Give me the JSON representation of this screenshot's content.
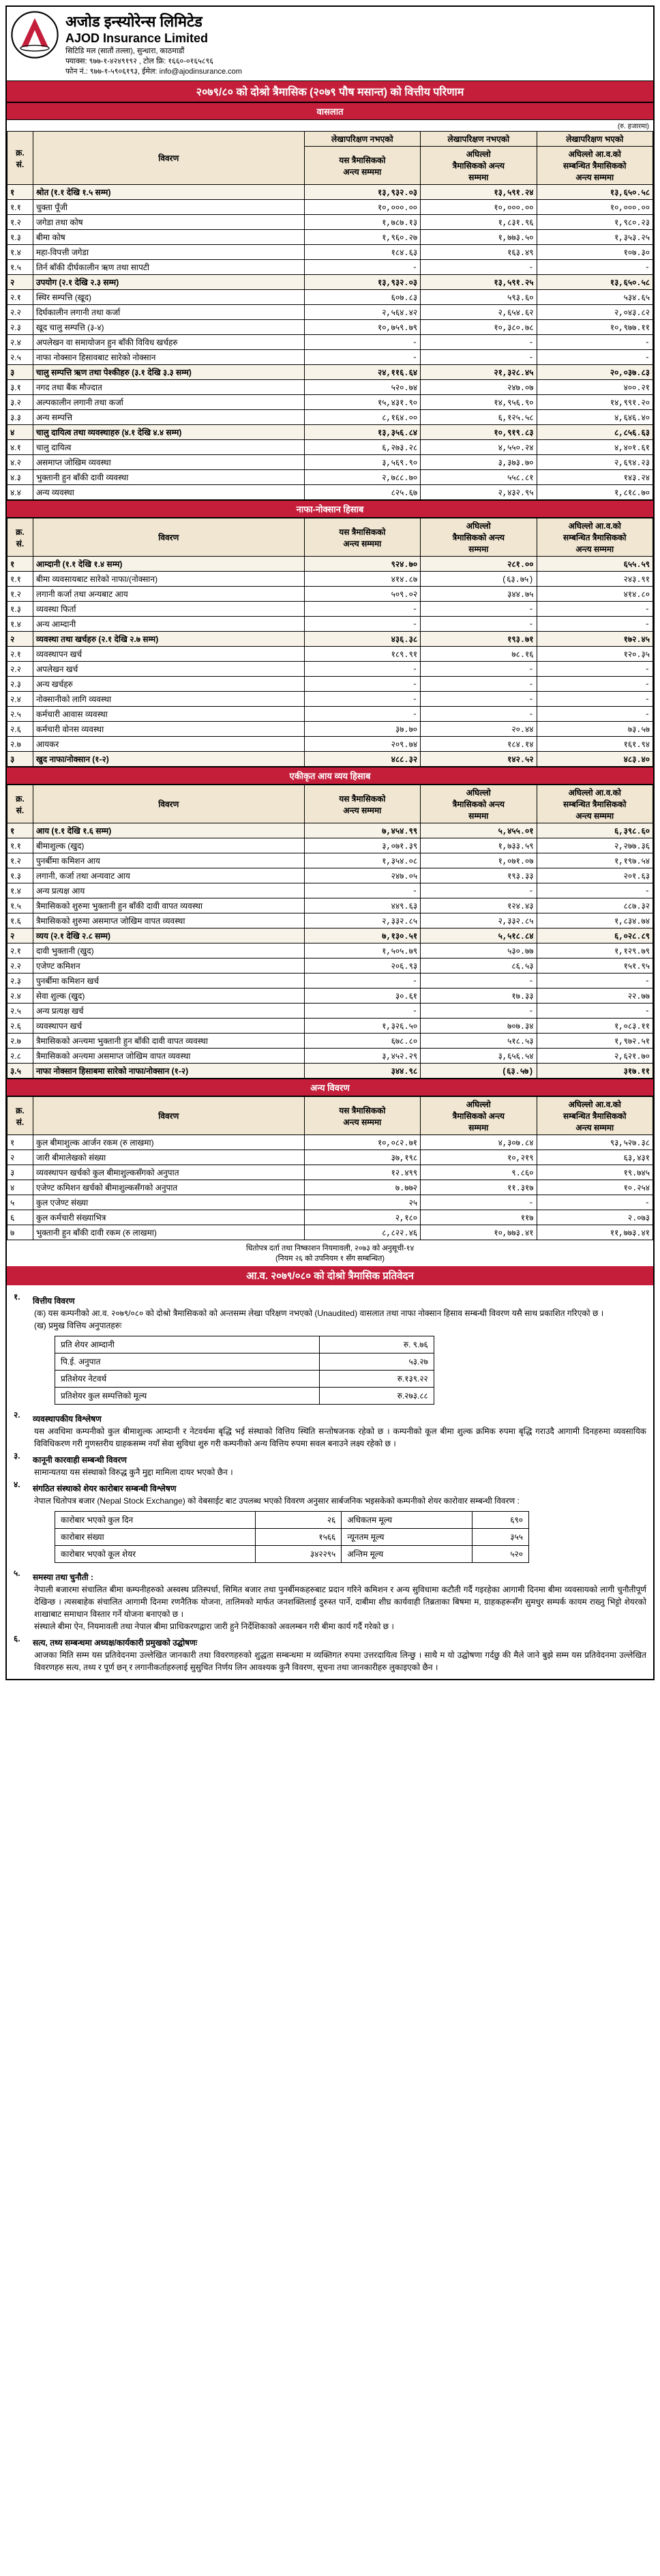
{
  "header": {
    "name_ne": "अजोड इन्स्योरेन्स लिमिटेड",
    "name_en": "AJOD Insurance Limited",
    "address": "सिटिडि मल (सातौं तल्ला), सुन्धारा, काठमाडौं",
    "contact": "फ्याक्स: ९७७-१-४२४९१९२ , टोल फ्रि: १६६०-०१६५८९६",
    "fax": "फोन नं.: ९७७-१-५९०६१९३, ईमेल: info@ajodinsurance.com"
  },
  "main_title": "२०७९/८० को दोश्रो त्रैमासिक (२०७९ पौष मसान्त) को वित्तीय परिणाम",
  "sections": {
    "s1": "वासलात",
    "s2": "नाफा-नोक्सान हिसाब",
    "s3": "एकीकृत आय व्यय हिसाब",
    "s4": "अन्य विवरण"
  },
  "unit_label": "(रु. हजारमा)",
  "cols": {
    "sn": "क्र.\nसं.",
    "desc": "विवरण",
    "c1": "यस त्रैमासिकको\nअन्त्य सम्ममा",
    "c2": "अघिल्लो\nत्रैमासिकको अन्त्य\nसम्ममा",
    "c3": "अघिल्लो आ.व.को\nसम्बन्धित त्रैमासिकको\nअन्त्य सम्ममा",
    "c1b": "लेखापरिक्षण नभएको",
    "c2b": "लेखापरिक्षण नभएको",
    "c3b": "लेखापरिक्षण भएको"
  },
  "t1": [
    {
      "b": 1,
      "sn": "१",
      "d": "श्रोत (१.१ देखि १.५ सम्म)",
      "v": [
        "१३,९३२.०३",
        "१३,५९१.२४",
        "१३,६५०.५८"
      ]
    },
    {
      "sn": "१.१",
      "d": "चुक्ता पूँजी",
      "v": [
        "१०,०००.००",
        "१०,०००.००",
        "१०,०००.००"
      ]
    },
    {
      "sn": "१.२",
      "d": "जगेडा तथा कोष",
      "v": [
        "१,७८७.१३",
        "१,८३१.९६",
        "१,९८०.२३"
      ]
    },
    {
      "sn": "१.३",
      "d": "बीमा कोष",
      "v": [
        "१,९६०.२७",
        "१,७७३.५०",
        "१,३५३.२५"
      ]
    },
    {
      "sn": "१.४",
      "d": "महा-विपत्ती जगेडा",
      "v": [
        "१८४.६३",
        "१६३.४९",
        "१०७.३०"
      ]
    },
    {
      "sn": "१.५",
      "d": "तिर्न बाँकी दीर्घकालीन ऋण तथा सापटी",
      "v": [
        "-",
        "-",
        "-"
      ]
    },
    {
      "b": 1,
      "sn": "२",
      "d": "उपयोग (२.१ देखि २.३ सम्म)",
      "v": [
        "१३,९३२.०३",
        "१३,५९१.२५",
        "१३,६५०.५८"
      ]
    },
    {
      "sn": "२.१",
      "d": "स्थिर सम्पत्ति (खूद)",
      "v": [
        "६०७.८३",
        "५९३.६०",
        "५३४.६५"
      ]
    },
    {
      "sn": "२.२",
      "d": "दिर्घकालीन लगानी तथा कर्जा",
      "v": [
        "२,५६४.४२",
        "२,६५४.६२",
        "२,०४३.८२"
      ]
    },
    {
      "sn": "२.३",
      "d": "खूद चालु सम्पत्ति (३-४)",
      "v": [
        "१०,७५९.७९",
        "१०,३८०.७८",
        "१०,९७७.११"
      ]
    },
    {
      "sn": "२.४",
      "d": "अपलेखन वा समायोजन हुन बाँकी विविध खर्चहरु",
      "v": [
        "-",
        "-",
        "-"
      ]
    },
    {
      "sn": "२.५",
      "d": "नाफा नोक्सान हिसावबाट सारेको नोक्सान",
      "v": [
        "-",
        "-",
        "-"
      ]
    },
    {
      "b": 1,
      "sn": "३",
      "d": "चालु सम्पत्ति ऋण तथा पेश्कीहरु (३.१ देखि ३.३ सम्म)",
      "v": [
        "२४,११६.६४",
        "२१,३२८.४५",
        "२०,०३७.८३"
      ]
    },
    {
      "sn": "३.१",
      "d": "नगद तथा बैंक मौज्दात",
      "v": [
        "५२०.७४",
        "२४७.०७",
        "४००.२१"
      ]
    },
    {
      "sn": "३.२",
      "d": "अल्पकालीन लगानी तथा कर्जा",
      "v": [
        "१५,४३१.९०",
        "१४,९५६.९०",
        "१४,९९१.२०"
      ]
    },
    {
      "sn": "३.३",
      "d": "अन्य सम्पत्ति",
      "v": [
        "८,१६४.००",
        "६,१२५.५८",
        "४,६४६.४०"
      ]
    },
    {
      "b": 1,
      "sn": "४",
      "d": "चालु दायित्व तथा व्यवस्थाहरु (४.१ देखि ४.४ सम्म)",
      "v": [
        "१३,३५६.८४",
        "१०,९१९.८३",
        "८,८५६.६३"
      ]
    },
    {
      "sn": "४.१",
      "d": "चालु दायित्व",
      "v": [
        "६,२७३.२८",
        "४,५५०.२४",
        "४,४०१.६१"
      ]
    },
    {
      "sn": "४.२",
      "d": "असमाप्त जोखिम व्यवस्था",
      "v": [
        "३,५६९.९०",
        "३,३७३.७०",
        "२,६९४.२३"
      ]
    },
    {
      "sn": "४.३",
      "d": "भुक्तानी हुन बाँकी दावी व्यवस्था",
      "v": [
        "२,७८८.७०",
        "५५८.८१",
        "१४३.२४"
      ]
    },
    {
      "sn": "४.४",
      "d": "अन्य व्यवस्था",
      "v": [
        "८२५.६७",
        "२,४३२.९५",
        "१,८१८.७०"
      ]
    }
  ],
  "t2": [
    {
      "b": 1,
      "sn": "१",
      "d": "आम्दानी (१.१ देखि १.४ सम्म)",
      "v": [
        "९२४.७०",
        "२८१.००",
        "६५५.५९"
      ]
    },
    {
      "sn": "१.१",
      "d": "बीमा व्यवसायबाट सारेको नाफा/(नोक्सान)",
      "v": [
        "४१४.८७",
        "(६३.७५)",
        "२४३.९१"
      ]
    },
    {
      "sn": "१.२",
      "d": "लगानी कर्जा तथा अन्यबाट आय",
      "v": [
        "५०९.०२",
        "३४४.७५",
        "४१४.८०"
      ]
    },
    {
      "sn": "१.३",
      "d": "व्यवस्था फिर्ता",
      "v": [
        "-",
        "-",
        "-"
      ]
    },
    {
      "sn": "१.४",
      "d": "अन्य आम्दानी",
      "v": [
        "-",
        "-",
        "-"
      ]
    },
    {
      "b": 1,
      "sn": "२",
      "d": "व्यवस्था तथा खर्चहरु (२.१ देखि २.७ सम्म)",
      "v": [
        "४३६.३८",
        "१९३.७१",
        "१७२.४५"
      ]
    },
    {
      "sn": "२.१",
      "d": "व्यवस्थापन खर्च",
      "v": [
        "१८९.९१",
        "७८.१६",
        "१२०.३५"
      ]
    },
    {
      "sn": "२.२",
      "d": "अपलेखन खर्च",
      "v": [
        "-",
        "-",
        "-"
      ]
    },
    {
      "sn": "२.३",
      "d": "अन्य खर्चहरु",
      "v": [
        "-",
        "-",
        "-"
      ]
    },
    {
      "sn": "२.४",
      "d": "नोक्सानीको लागि व्यवस्था",
      "v": [
        "-",
        "-",
        "-"
      ]
    },
    {
      "sn": "२.५",
      "d": "कर्मचारी आवास व्यवस्था",
      "v": [
        "-",
        "-",
        "-"
      ]
    },
    {
      "sn": "२.६",
      "d": "कर्मचारी वोनस व्यवस्था",
      "v": [
        "३७.७०",
        "२०.४४",
        "७३.५७"
      ]
    },
    {
      "sn": "२.७",
      "d": "आयकर",
      "v": [
        "२०९.७४",
        "१८४.१४",
        "१६१.९४"
      ]
    },
    {
      "b": 1,
      "sn": "३",
      "d": "खुद नाफा/नोक्सान (१-२)",
      "v": [
        "४८८.३२",
        "१४२.५२",
        "४८३.४०"
      ]
    }
  ],
  "t3": [
    {
      "b": 1,
      "sn": "१",
      "d": "आय (१.१ देखि १.६ सम्म)",
      "v": [
        "७,४५४.९९",
        "५,४५५.०१",
        "६,३९८.६०"
      ]
    },
    {
      "sn": "१.१",
      "d": "बीमाशुल्क (खुद)",
      "v": [
        "३,०७१.३९",
        "१,७३३.५९",
        "२,२७७.३६"
      ]
    },
    {
      "sn": "१.२",
      "d": "पुनर्बीमा कमिशन आय",
      "v": [
        "१,३५४.०८",
        "१,०७१.०७",
        "१,१९७.५४"
      ]
    },
    {
      "sn": "१.३",
      "d": "लगानी, कर्जा तथा अन्यवाट आय",
      "v": [
        "२४७.०५",
        "१९३.३३",
        "२०१.६३"
      ]
    },
    {
      "sn": "१.४",
      "d": "अन्य प्रत्यक्ष आय",
      "v": [
        "-",
        "-",
        "-"
      ]
    },
    {
      "sn": "१.५",
      "d": "त्रैमासिकको शुरुमा भुक्तानी हुन बाँकी दावी वापत व्यवस्था",
      "v": [
        "४४९.६३",
        "१२४.४३",
        "८८७.३२"
      ]
    },
    {
      "sn": "१.६",
      "d": "त्रैमासिकको शुरुमा असमाप्त जोखिम वापत व्यवस्था",
      "v": [
        "२,३३२.८५",
        "२,३३२.८५",
        "१,८३४.७४"
      ]
    },
    {
      "b": 1,
      "sn": "२",
      "d": "व्यय (२.१ देखि २.८ सम्म)",
      "v": [
        "७,१३०.५१",
        "५,५१८.८४",
        "६,०२८.८९"
      ]
    },
    {
      "sn": "२.१",
      "d": "दावी भुक्तानी (खुद)",
      "v": [
        "१,५०५.७९",
        "५३०.७७",
        "१,१२९.७९"
      ]
    },
    {
      "sn": "२.२",
      "d": "एजेण्ट कमिशन",
      "v": [
        "२०६.९३",
        "८६.५३",
        "१५१.९५"
      ]
    },
    {
      "sn": "२.३",
      "d": "पुनर्बीमा कमिशन खर्च",
      "v": [
        "-",
        "-",
        "-"
      ]
    },
    {
      "sn": "२.४",
      "d": "सेवा शुल्क (खुद)",
      "v": [
        "३०.६१",
        "१७.३३",
        "२२.७७"
      ]
    },
    {
      "sn": "२.५",
      "d": "अन्य प्रत्यक्ष खर्च",
      "v": [
        "-",
        "-",
        "-"
      ]
    },
    {
      "sn": "२.६",
      "d": "व्यवस्थापन खर्च",
      "v": [
        "१,३२६.५०",
        "७०७.३४",
        "१,०८३.११"
      ]
    },
    {
      "sn": "२.७",
      "d": "त्रैमासिकको अन्त्यमा भुक्तानी हुन बाँकी दावी वापत व्यवस्था",
      "v": [
        "६७८.८०",
        "५१८.५३",
        "१,९७२.५१"
      ]
    },
    {
      "sn": "२.८",
      "d": "त्रैमासिकको अन्त्यमा असमाप्त जोखिम वापत व्यवस्था",
      "v": [
        "३,४५२.२९",
        "३,६५६.५४",
        "२,६२१.७०"
      ]
    },
    {
      "b": 1,
      "sn": "३.५",
      "d": "नाफा नोक्सान हिसाबमा सारेको नाफा/नोक्सान (१-२)",
      "v": [
        "३४४.९८",
        "(६३.५७)",
        "३१७.११"
      ]
    }
  ],
  "t4": [
    {
      "sn": "१",
      "d": "कुल बीमाशुल्क आर्जन रकम (रु लाखमा)",
      "v": [
        "१०,०८२.७१",
        "४,३०७.८४",
        "९३,५२७.३८"
      ]
    },
    {
      "sn": "२",
      "d": "जारी बीमालेखको संख्या",
      "v": [
        "३७,१९८",
        "१०,२१९",
        "६३,४३१"
      ]
    },
    {
      "sn": "३",
      "d": "व्यवस्थापन खर्चको कुल बीमाशुल्कसँगको अनुपात",
      "v": [
        "१२.४९९",
        "९.८६०",
        "१९.७४५"
      ]
    },
    {
      "sn": "४",
      "d": "एजेण्ट कमिशन खर्चको बीमाशुल्कसँगको अनुपात",
      "v": [
        "७.७७२",
        "११.३१७",
        "१०.२५४"
      ]
    },
    {
      "sn": "५",
      "d": "कुल एजेण्ट संख्या",
      "v": [
        "२५",
        "-",
        "-"
      ]
    },
    {
      "sn": "६",
      "d": "कुल कर्मचारी संख्याभित्र",
      "v": [
        "२,१८०",
        "११७",
        "२.०७३"
      ]
    },
    {
      "sn": "७",
      "d": "भुक्तानी हुन बाँकी दावी रकम (रु लाखमा)",
      "v": [
        "८,८२२.४६",
        "१०,७७३.४१",
        "११,७७३.४१"
      ]
    }
  ],
  "report": {
    "pre": "धितोपत्र दर्ता तथा निष्काशन नियमावली, २०७३ को अनुसूची-१४\n(नियम २६ को उपनियम १ सँग सम्बन्धित)",
    "title": "आ.व. २०७९/०८० को दोश्रो त्रैमासिक प्रतिवेदन"
  },
  "notes": {
    "n1h": "वित्तीय विवरण",
    "n1a": "(क)   यस कम्पनीको आ.व. २०७९/०८० को दोश्रो त्रैमासिकको को अन्तसम्म लेखा परिक्षण नभएको (Unaudited) वासलात तथा नाफा नोक्सान हिसाव सम्बन्धी विवरण यसै साथ प्रकाशित गरिएको छ ।",
    "n1b": "(ख)   प्रमुख वित्तिय अनुपातहरुः",
    "ratios": [
      [
        "प्रति शेयर आम्दानी",
        "रु. ९.७६"
      ],
      [
        "पि.ई. अनुपात",
        "५३.२७"
      ],
      [
        "प्रतिशेयर नेटवर्थ",
        "रु.१३९.२२"
      ],
      [
        "प्रतिशेयर कुल सम्पत्तिको मूल्य",
        "रु.२७३.८८"
      ]
    ],
    "n2h": "व्यवस्थापकीय विश्लेषण",
    "n2t": "यस अवधिमा कम्पनीको कुल बीमाशुल्क आम्दानी र नेटवर्थमा बृद्धि भई संस्थाको वित्तिय स्थिति सन्तोषजनक रहेको छ । कम्पनीको कूल बीमा शुल्क क्रमिक रुपमा बृद्धि गराउदै आगामी दिनहरुमा व्यवसायिक विविधिकरण गरी गुणस्तरीय ग्राहकसम्म नयाँ सेवा सुविधा शुरु गरी कम्पनीको अन्य वित्तिय रुपमा सवल बनाउने लक्ष्य रहेको छ ।",
    "n3h": "कानूनी कारवाही सम्बन्धी विवरण",
    "n3t": "सामान्यतया यस संस्थाको विरुद्ध कुनै मुद्दा मामिला दायर भएको छैन ।",
    "n4h": "संगठित संस्थाको शेयर कारोबार सम्बन्धी विश्लेषण",
    "n4t": "नेपाल धितोपत्र बजार (Nepal Stock Exchange) को वेबसाईट बाट उपलब्ध भएको विवरण अनुसार सार्बजनिक भइसकेको कम्पनीको शेयर कारोवार सम्बन्धी विवरण :",
    "trade": [
      [
        "कारोबार भएको कुल दिन",
        "२६",
        "अधिकतम मूल्य",
        "६९०"
      ],
      [
        "कारोबार संख्या",
        "१५६६",
        "न्यूनतम मूल्य",
        "३५५"
      ],
      [
        "कारोबार भएको कूल शेयर",
        "३४२२९५",
        "अन्तिम मूल्य",
        "५२०"
      ]
    ],
    "n5h": "समस्या तथा चुनौती :",
    "n5t": "नेपाली बजारमा संचालित बीमा कम्पनीहरुको अस्वस्थ प्रतिस्पर्धा, सिमित बजार तथा पुनर्बीमकहरुबाट प्रदान गरिने कमिशन र अन्य सुविधामा कटौती गर्दै गइरहेका आगामी दिनमा बीमा व्यवसायको लागी चुनौतीपूर्ण देखिन्छ । त्यसबाहेक संचालित आगामी दिनमा रणनैतिक योजना, तालिमको मार्फत जनशक्तिलाई दुरुस्त पार्ने, दाबीमा शीघ्र कार्यवाही तिब्रताका बिषमा म, ग्राहकहरूसँग सुमधुर सम्पर्क कायम राख्नु भिट्टो शेयरको शाखाबाट समाधान विस्तार गर्ने योजना बनाएको छ ।",
    "n5t2": "संस्थाले बीमा ऐन, नियमावली तथा नेपाल बीमा प्राधिकरणद्वारा जारी हुने निर्देशिकाको अवलम्बन गरी बीमा कार्य गर्दै गरेको छ ।",
    "n6h": "सत्य, तथ्य सम्बन्धमा अध्यक्ष/कार्यकारी प्रमुखको उद्घोषणः",
    "n6t": "आजका मिति सम्म यस प्रतिवेदनमा उल्लेखित जानकारी तथा विवरणहरुको शुद्धता सम्बन्धमा म व्यक्तिगत रुपमा उत्तरदायित्व लिन्छु । साथै म यो उद्घोषणा गर्दछु की मैले जाने बुझे सम्म यस प्रतिवेदनमा उल्लेखित विवरणहरु सत्य, तथ्य र पूर्ण छन् र लगानीकर्ताहरुलाई सुसुचित निर्णय लिन आवश्यक कुनै विवरण, सूचना तथा जानकारीहरु लुकाइएको छैन ।"
  }
}
